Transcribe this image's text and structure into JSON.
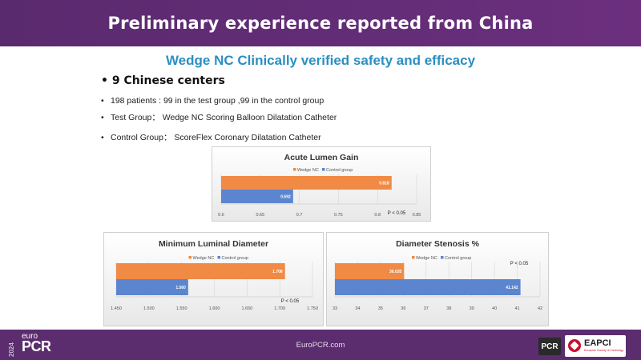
{
  "slide": {
    "title": "Preliminary experience reported from China",
    "subtitle": "Wedge NC Clinically verified safety and efficacy",
    "bullet_main": "9 Chinese centers",
    "bullets": [
      "198 patients : 99 in the test group ,99 in the control group",
      "Test Group： Wedge NC Scoring Balloon Dilatation Catheter",
      "Control Group： ScoreFlex Coronary Dilatation Catheter"
    ],
    "bullet_symbol": "•"
  },
  "colors": {
    "header": "#5a2a6e",
    "subtitle": "#2a8fc2",
    "wedge": "#f08a45",
    "control": "#5b86cf"
  },
  "chart_data": [
    {
      "type": "bar",
      "orientation": "horizontal",
      "title": "Acute Lumen Gain",
      "legend": [
        "Wedge NC",
        "Control group"
      ],
      "series": [
        {
          "name": "Wedge NC",
          "values": [
            0.818
          ]
        },
        {
          "name": "Control group",
          "values": [
            0.692
          ]
        }
      ],
      "value_labels": [
        "0.818",
        "0.692"
      ],
      "xlim": [
        0.6,
        0.85
      ],
      "ticks": [
        "0.6",
        "0.65",
        "0.7",
        "0.75",
        "0.8",
        "0.85"
      ],
      "annotation": "P < 0.05"
    },
    {
      "type": "bar",
      "orientation": "horizontal",
      "title": "Minimum Luminal Diameter",
      "legend": [
        "Wedge NC",
        "Control group"
      ],
      "series": [
        {
          "name": "Wedge NC",
          "values": [
            1.708
          ]
        },
        {
          "name": "Control group",
          "values": [
            1.56
          ]
        }
      ],
      "value_labels": [
        "1.708",
        "1.560"
      ],
      "xlim": [
        1.45,
        1.75
      ],
      "ticks": [
        "1.450",
        "1.500",
        "1.550",
        "1.600",
        "1.650",
        "1.700",
        "1.750"
      ],
      "annotation": "P < 0.05"
    },
    {
      "type": "bar",
      "orientation": "horizontal",
      "title": "Diameter Stenosis %",
      "legend": [
        "Wedge NC",
        "Control group"
      ],
      "series": [
        {
          "name": "Wedge NC",
          "values": [
            36.035
          ]
        },
        {
          "name": "Control group",
          "values": [
            41.142
          ]
        }
      ],
      "value_labels": [
        "36.035",
        "41.142"
      ],
      "xlim": [
        33,
        42
      ],
      "ticks": [
        "33",
        "34",
        "35",
        "36",
        "37",
        "38",
        "39",
        "40",
        "41",
        "42"
      ],
      "annotation": "P < 0.05"
    }
  ],
  "footer": {
    "url": "EuroPCR.com",
    "logo_year": "2024",
    "logo_euro": "euro",
    "logo_pcr": "PCR",
    "pcr_badge": "PCR",
    "eapci": "EAPCI",
    "eapci_sub": "European Society of Cardiology"
  }
}
